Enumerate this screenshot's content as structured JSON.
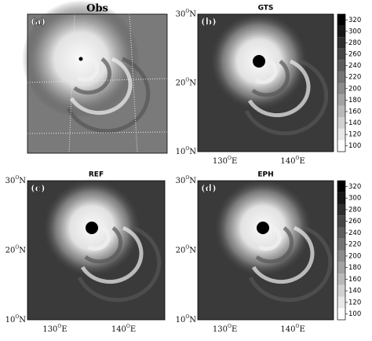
{
  "panels": [
    {
      "label": "(a)",
      "title": "Obs"
    },
    {
      "label": "(b)",
      "title": "GTS"
    },
    {
      "label": "(c)",
      "title": "REF"
    },
    {
      "label": "(d)",
      "title": "EPH"
    }
  ],
  "lat_labels": [
    "30",
    "20",
    "10"
  ],
  "lon_labels": [
    "130",
    "140"
  ],
  "degree": "O",
  "north": "N",
  "east": "E",
  "colorbar_ticks": [
    320,
    300,
    280,
    260,
    240,
    220,
    200,
    180,
    160,
    140,
    120,
    100
  ]
}
